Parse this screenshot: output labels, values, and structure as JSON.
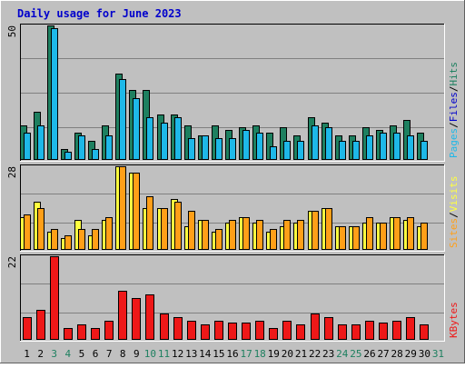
{
  "title": "Daily usage for June 2023",
  "colors": {
    "hits": "#1E8060",
    "files": "#1EB8E8",
    "pages": "#1EB8E8",
    "visits": "#FFFF40",
    "sites": "#FF9F18",
    "kbytes": "#EE1818",
    "title": "#0000CC",
    "panel": "#C0C0C0",
    "gridline": "#808080",
    "weekend": "#1E8060"
  },
  "chart_data": [
    {
      "type": "bar",
      "name": "hits-files-pages",
      "max_label": "50",
      "ylim": [
        0,
        50
      ],
      "legend": [
        {
          "text": "Pages",
          "color": "#1EB8E8"
        },
        {
          "text": "/",
          "color": "#000000"
        },
        {
          "text": "Files",
          "color": "#0000CC"
        },
        {
          "text": "/",
          "color": "#000000"
        },
        {
          "text": "Hits",
          "color": "#1E8060"
        }
      ],
      "categories": [
        "1",
        "2",
        "3",
        "4",
        "5",
        "6",
        "7",
        "8",
        "9",
        "10",
        "11",
        "12",
        "13",
        "14",
        "15",
        "16",
        "17",
        "18",
        "19",
        "20",
        "21",
        "22",
        "23",
        "24",
        "25",
        "26",
        "27",
        "28",
        "29",
        "30"
      ],
      "series": [
        {
          "name": "Hits",
          "values": [
            13,
            18,
            50,
            4,
            10,
            7,
            13,
            32,
            26,
            26,
            17,
            17,
            13,
            9,
            13,
            11,
            12,
            13,
            10,
            12,
            9,
            16,
            14,
            9,
            9,
            12,
            11,
            13,
            15,
            10
          ]
        },
        {
          "name": "Files",
          "values": [
            10,
            13,
            49,
            3,
            9,
            4,
            9,
            30,
            23,
            16,
            14,
            16,
            8,
            9,
            8,
            8,
            11,
            10,
            5,
            7,
            7,
            13,
            12,
            7,
            7,
            9,
            10,
            10,
            9,
            7
          ]
        }
      ]
    },
    {
      "type": "bar",
      "name": "visits-sites",
      "max_label": "28",
      "ylim": [
        0,
        28
      ],
      "legend": [
        {
          "text": "Sites",
          "color": "#FF9F18"
        },
        {
          "text": "/",
          "color": "#000000"
        },
        {
          "text": "Visits",
          "color": "#FFFF40"
        }
      ],
      "categories": [
        "1",
        "2",
        "3",
        "4",
        "5",
        "6",
        "7",
        "8",
        "9",
        "10",
        "11",
        "12",
        "13",
        "14",
        "15",
        "16",
        "17",
        "18",
        "19",
        "20",
        "21",
        "22",
        "23",
        "24",
        "25",
        "26",
        "27",
        "28",
        "29",
        "30"
      ],
      "series": [
        {
          "name": "Visits",
          "values": [
            11,
            16,
            6,
            4,
            10,
            5,
            10,
            28,
            26,
            14,
            14,
            17,
            8,
            10,
            6,
            9,
            11,
            9,
            6,
            8,
            9,
            13,
            14,
            8,
            8,
            9,
            9,
            11,
            10,
            8
          ]
        },
        {
          "name": "Sites",
          "values": [
            12,
            14,
            7,
            5,
            7,
            7,
            11,
            28,
            26,
            18,
            14,
            16,
            13,
            10,
            7,
            10,
            11,
            10,
            7,
            10,
            10,
            13,
            14,
            8,
            8,
            11,
            9,
            11,
            11,
            9
          ]
        }
      ]
    },
    {
      "type": "bar",
      "name": "kbytes",
      "max_label": "22",
      "ylim": [
        0,
        22
      ],
      "legend": [
        {
          "text": "KBytes",
          "color": "#EE1818"
        }
      ],
      "categories": [
        "1",
        "2",
        "3",
        "4",
        "5",
        "6",
        "7",
        "8",
        "9",
        "10",
        "11",
        "12",
        "13",
        "14",
        "15",
        "16",
        "17",
        "18",
        "19",
        "20",
        "21",
        "22",
        "23",
        "24",
        "25",
        "26",
        "27",
        "28",
        "29",
        "30"
      ],
      "series": [
        {
          "name": "KBytes",
          "values": [
            6,
            8,
            22,
            3,
            4,
            3,
            5,
            13,
            11,
            12,
            7,
            6,
            5,
            4,
            5,
            4.5,
            4.5,
            5,
            3,
            5,
            4,
            7,
            6,
            4,
            4,
            5,
            4.5,
            5,
            6,
            4
          ]
        }
      ]
    }
  ],
  "days": [
    {
      "label": "1",
      "weekend": false
    },
    {
      "label": "2",
      "weekend": false
    },
    {
      "label": "3",
      "weekend": true
    },
    {
      "label": "4",
      "weekend": true
    },
    {
      "label": "5",
      "weekend": false
    },
    {
      "label": "6",
      "weekend": false
    },
    {
      "label": "7",
      "weekend": false
    },
    {
      "label": "8",
      "weekend": false
    },
    {
      "label": "9",
      "weekend": false
    },
    {
      "label": "10",
      "weekend": true
    },
    {
      "label": "11",
      "weekend": true
    },
    {
      "label": "12",
      "weekend": false
    },
    {
      "label": "13",
      "weekend": false
    },
    {
      "label": "14",
      "weekend": false
    },
    {
      "label": "15",
      "weekend": false
    },
    {
      "label": "16",
      "weekend": false
    },
    {
      "label": "17",
      "weekend": true
    },
    {
      "label": "18",
      "weekend": true
    },
    {
      "label": "19",
      "weekend": false
    },
    {
      "label": "20",
      "weekend": false
    },
    {
      "label": "21",
      "weekend": false
    },
    {
      "label": "22",
      "weekend": false
    },
    {
      "label": "23",
      "weekend": false
    },
    {
      "label": "24",
      "weekend": true
    },
    {
      "label": "25",
      "weekend": true
    },
    {
      "label": "26",
      "weekend": false
    },
    {
      "label": "27",
      "weekend": false
    },
    {
      "label": "28",
      "weekend": false
    },
    {
      "label": "29",
      "weekend": false
    },
    {
      "label": "30",
      "weekend": false
    },
    {
      "label": "31",
      "weekend": true
    }
  ]
}
